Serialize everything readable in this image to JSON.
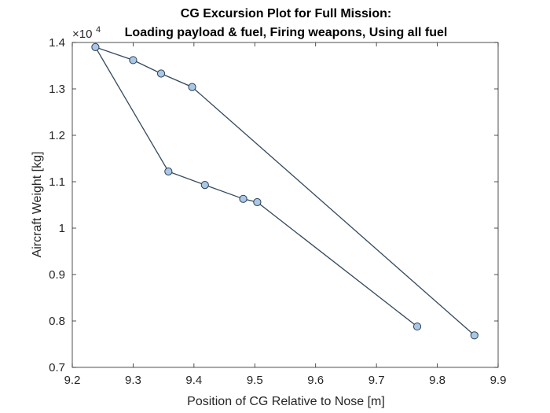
{
  "chart_data": {
    "type": "line",
    "title": [
      "CG Excursion Plot for Full Mission:",
      "Loading payload & fuel, Firing weapons, Using all fuel"
    ],
    "xlabel": "Position of CG Relative to Nose [m]",
    "ylabel": "Aircraft Weight [kg]",
    "y_exponent": {
      "base": "×10",
      "power": "4"
    },
    "xlim": [
      9.2,
      9.9
    ],
    "ylim": [
      0.7,
      1.4
    ],
    "xticks": [
      "9.2",
      "9.3",
      "9.4",
      "9.5",
      "9.6",
      "9.7",
      "9.8",
      "9.9"
    ],
    "yticks": [
      "0.7",
      "0.8",
      "0.9",
      "1",
      "1.1",
      "1.2",
      "1.3",
      "1.4"
    ],
    "grid": false,
    "series": [
      {
        "x": [
          9.767,
          9.504,
          9.481,
          9.418,
          9.358,
          9.238,
          9.3,
          9.346,
          9.397,
          9.861
        ],
        "y": [
          0.788,
          1.056,
          1.063,
          1.093,
          1.122,
          1.39,
          1.362,
          1.333,
          1.304,
          0.769
        ],
        "line_color": "#34495e",
        "marker_fill": "#a9c8e8",
        "marker_edge": "#2c3e50"
      }
    ]
  }
}
